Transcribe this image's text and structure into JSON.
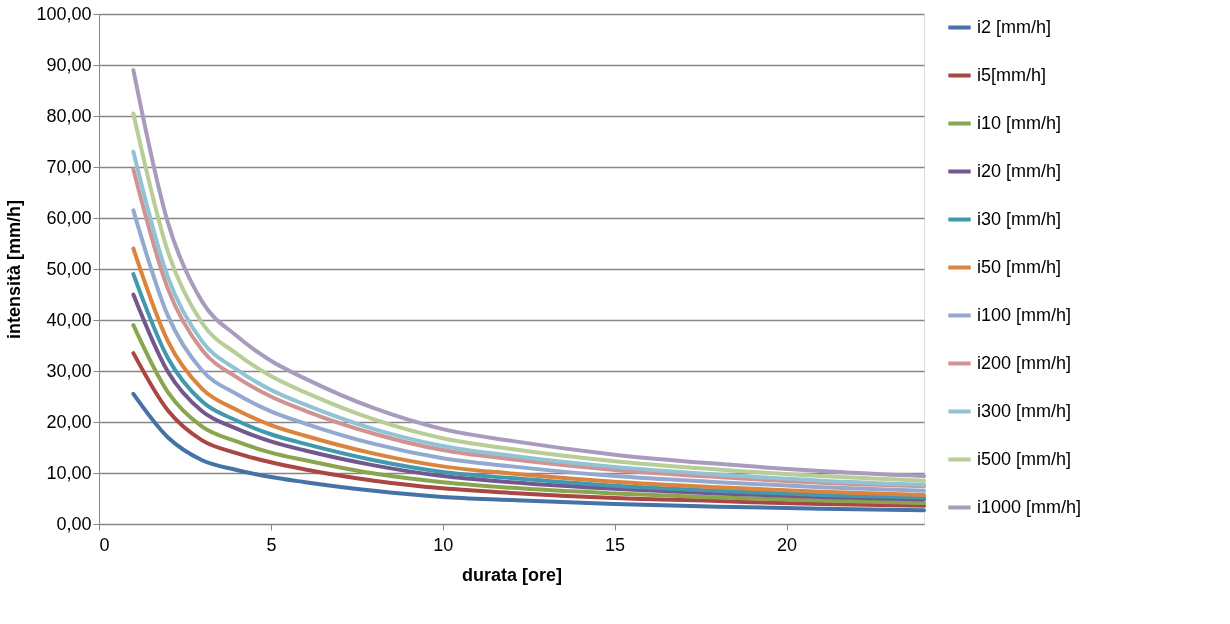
{
  "chart_data": {
    "type": "line",
    "xlabel": "durata [ore]",
    "ylabel": "intensità [mm/h]",
    "x": [
      1,
      2,
      3,
      4,
      5,
      6,
      8,
      10,
      12,
      15,
      18,
      21,
      24
    ],
    "xlim": [
      0,
      24
    ],
    "xticks": [
      0,
      5,
      10,
      15,
      20
    ],
    "ylim": [
      0,
      100
    ],
    "yticks": [
      {
        "value": 0,
        "label": "0,00"
      },
      {
        "value": 10,
        "label": "10,00"
      },
      {
        "value": 20,
        "label": "20,00"
      },
      {
        "value": 30,
        "label": "30,00"
      },
      {
        "value": 40,
        "label": "40,00"
      },
      {
        "value": 50,
        "label": "50,00"
      },
      {
        "value": 60,
        "label": "60,00"
      },
      {
        "value": 70,
        "label": "70,00"
      },
      {
        "value": 80,
        "label": "80,00"
      },
      {
        "value": 90,
        "label": "90,00"
      },
      {
        "value": 100,
        "label": "100,00"
      }
    ],
    "grid": "y",
    "legend": "right",
    "marker": "none",
    "line_style": "solid",
    "series": [
      {
        "name": "i2 [mm/h]",
        "color": "#4572a7",
        "values": [
          25.5,
          17.0,
          12.5,
          10.6,
          9.2,
          8.2,
          6.5,
          5.3,
          4.7,
          3.9,
          3.4,
          3.0,
          2.7
        ]
      },
      {
        "name": "i5[mm/h]",
        "color": "#aa4643",
        "values": [
          33.5,
          22.3,
          16.4,
          13.9,
          12.1,
          10.7,
          8.5,
          7.0,
          6.1,
          5.1,
          4.5,
          3.9,
          3.6
        ]
      },
      {
        "name": "i10 [mm/h]",
        "color": "#89a54e",
        "values": [
          39,
          25.9,
          19.1,
          16.2,
          14.0,
          12.5,
          9.9,
          8.2,
          7.1,
          6.0,
          5.2,
          4.6,
          4.1
        ]
      },
      {
        "name": "i20 [mm/h]",
        "color": "#71588f",
        "values": [
          45,
          29.9,
          22.1,
          18.7,
          16.2,
          14.4,
          11.5,
          9.4,
          8.2,
          6.9,
          6.0,
          5.3,
          4.8
        ]
      },
      {
        "name": "i30 [mm/h]",
        "color": "#4198af",
        "values": [
          49,
          32.6,
          24.0,
          20.3,
          17.6,
          15.7,
          12.5,
          10.2,
          9.0,
          7.5,
          6.5,
          5.7,
          5.2
        ]
      },
      {
        "name": "i50 [mm/h]",
        "color": "#db843d",
        "values": [
          54,
          35.9,
          26.5,
          22.4,
          19.4,
          17.3,
          13.8,
          11.3,
          9.9,
          8.3,
          7.2,
          6.3,
          5.7
        ]
      },
      {
        "name": "i100 [mm/h]",
        "color": "#93a9cf",
        "values": [
          61.5,
          40.9,
          30.1,
          25.5,
          22.1,
          19.7,
          15.7,
          12.9,
          11.3,
          9.4,
          8.2,
          7.2,
          6.5
        ]
      },
      {
        "name": "i200 [mm/h]",
        "color": "#d19392",
        "values": [
          69.5,
          46.2,
          34.1,
          28.8,
          25.0,
          22.2,
          17.7,
          14.5,
          12.7,
          10.6,
          9.2,
          8.1,
          7.4
        ]
      },
      {
        "name": "i300 [mm/h]",
        "color": "#92c3d4",
        "values": [
          73,
          48.5,
          35.8,
          30.3,
          26.3,
          23.4,
          18.6,
          15.3,
          13.4,
          11.2,
          9.7,
          8.5,
          7.7
        ]
      },
      {
        "name": "i500 [mm/h]",
        "color": "#b9cd96",
        "values": [
          80.5,
          53.5,
          39.4,
          33.4,
          29.0,
          25.8,
          20.5,
          16.8,
          14.7,
          12.3,
          10.7,
          9.4,
          8.5
        ]
      },
      {
        "name": "i1000 [mm/h]",
        "color": "#a99bbd",
        "values": [
          89,
          59.2,
          43.6,
          36.9,
          32.0,
          28.5,
          22.7,
          18.6,
          16.3,
          13.6,
          11.8,
          10.4,
          9.4
        ]
      }
    ]
  }
}
